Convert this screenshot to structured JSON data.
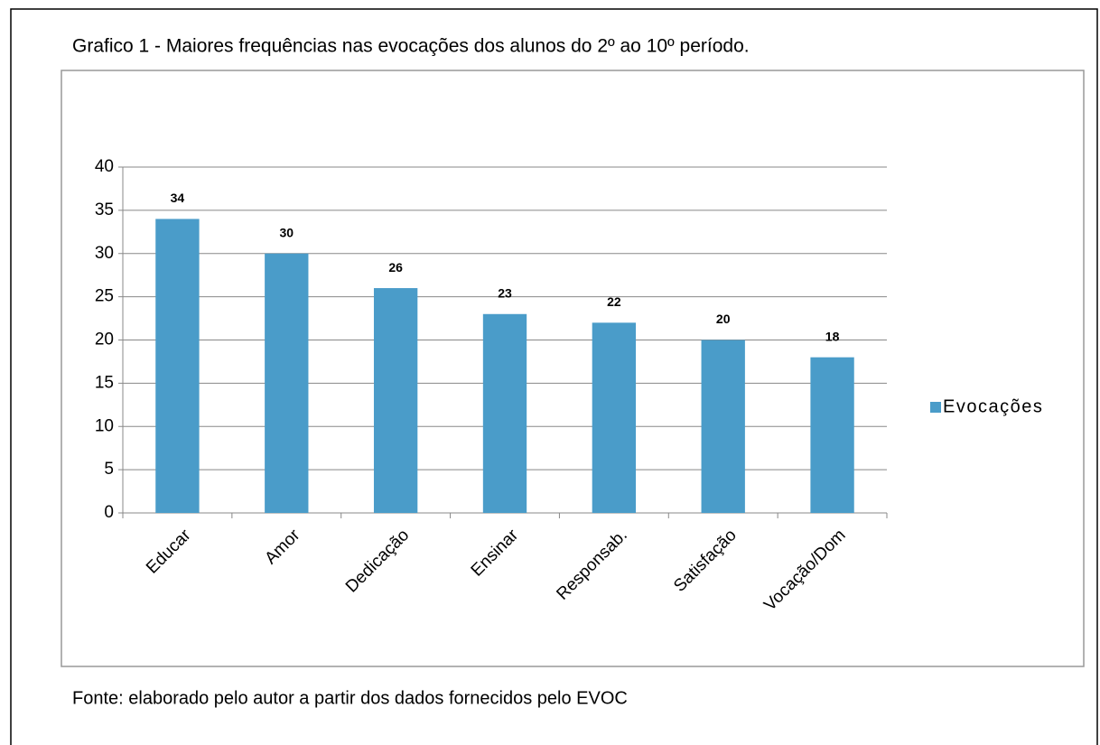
{
  "chart_data": {
    "type": "bar",
    "title": "Grafico 1 - Maiores frequências nas evocações dos alunos do 2º ao 10º período.",
    "source": "Fonte: elaborado pelo autor a partir dos dados fornecidos pelo EVOC",
    "categories": [
      "Educar",
      "Amor",
      "Dedicação",
      "Ensinar",
      "Responsab.",
      "Satisfação",
      "Vocação/Dom"
    ],
    "series": [
      {
        "name": "Evocações",
        "color": "#4a9cc9",
        "values": [
          34,
          30,
          26,
          23,
          22,
          20,
          18
        ]
      }
    ],
    "ylim": [
      0,
      40
    ],
    "yticks": [
      0,
      5,
      10,
      15,
      20,
      25,
      30,
      35,
      40
    ],
    "grid": true,
    "legend": "right"
  }
}
